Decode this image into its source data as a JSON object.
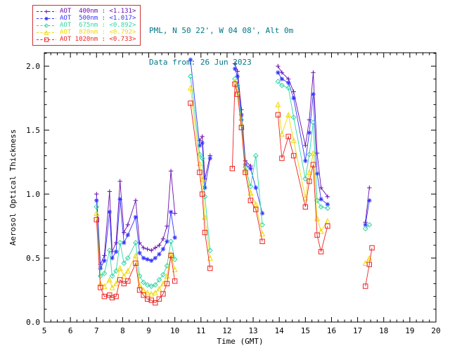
{
  "header": {
    "station_line": "PML, N 50 22', W 04 08', Alt 0m",
    "date_line": "Data from: 26 Jun 2023",
    "text_color": "#007788"
  },
  "legend": {
    "border_color": "#cc3333"
  },
  "chart_data": {
    "type": "line",
    "title": "",
    "xlabel": "Time (GMT)",
    "ylabel": "Aerosol Optical Thickness",
    "xlim": [
      5,
      20
    ],
    "ylim": [
      0,
      2.105
    ],
    "xticks": [
      5,
      6,
      7,
      8,
      9,
      10,
      11,
      12,
      13,
      14,
      15,
      16,
      17,
      18,
      19,
      20
    ],
    "yticks": [
      0,
      0.5,
      1,
      1.5,
      2
    ],
    "grid": false,
    "legend_position": "top-left",
    "line_break_gap_hours": 0.5,
    "x": [
      7.0,
      7.15,
      7.3,
      7.5,
      7.6,
      7.75,
      7.9,
      8.05,
      8.2,
      8.5,
      8.65,
      8.8,
      8.95,
      9.1,
      9.25,
      9.4,
      9.55,
      9.7,
      9.85,
      10.0,
      10.6,
      10.95,
      11.05,
      11.15,
      11.35,
      12.2,
      12.3,
      12.4,
      12.55,
      12.7,
      12.9,
      13.1,
      13.35,
      13.95,
      14.1,
      14.35,
      14.55,
      15.0,
      15.15,
      15.3,
      15.45,
      15.6,
      15.85,
      17.3,
      17.45,
      17.55
    ],
    "series": [
      {
        "id": "aot400",
        "name": "AOT 400nm",
        "wavelength_nm": 400,
        "mean_aot": 1.131,
        "legend_text": "AOT  400nm : <1.131>",
        "color": "#6a0dad",
        "marker": "plus",
        "values": [
          1.0,
          0.45,
          0.52,
          1.02,
          0.55,
          0.62,
          1.1,
          0.7,
          0.76,
          0.95,
          0.62,
          0.58,
          0.57,
          0.56,
          0.58,
          0.6,
          0.65,
          0.75,
          1.18,
          0.85,
          null,
          1.42,
          1.45,
          1.12,
          1.3,
          null,
          2.02,
          1.96,
          1.66,
          1.26,
          1.22,
          null,
          null,
          2.0,
          1.95,
          1.9,
          1.8,
          1.38,
          1.58,
          1.95,
          1.32,
          1.05,
          0.98,
          0.78,
          1.05,
          null
        ]
      },
      {
        "id": "aot500",
        "name": "AOT 500nm",
        "wavelength_nm": 500,
        "mean_aot": 1.017,
        "legend_text": "AOT  500nm : <1.017>",
        "color": "#3333ff",
        "marker": "asterisk",
        "values": [
          0.95,
          0.42,
          0.48,
          0.86,
          0.5,
          0.55,
          0.96,
          0.62,
          0.68,
          0.82,
          0.54,
          0.5,
          0.49,
          0.48,
          0.5,
          0.53,
          0.57,
          0.63,
          0.86,
          0.66,
          2.05,
          1.38,
          1.4,
          1.05,
          1.28,
          null,
          1.98,
          1.92,
          1.62,
          1.23,
          1.2,
          1.05,
          0.85,
          1.95,
          1.9,
          1.87,
          1.75,
          1.26,
          1.48,
          1.78,
          1.16,
          0.96,
          0.92,
          0.76,
          0.95,
          null
        ]
      },
      {
        "id": "aot675",
        "name": "AOT 675nm",
        "wavelength_nm": 675,
        "mean_aot": 0.892,
        "legend_text": "AOT  675nm : <0.892>",
        "color": "#2fd6a4",
        "marker": "diamond",
        "values": [
          0.9,
          0.36,
          0.38,
          0.56,
          0.36,
          0.4,
          0.62,
          0.46,
          0.5,
          0.62,
          0.36,
          0.31,
          0.29,
          0.28,
          0.29,
          0.33,
          0.37,
          0.44,
          0.63,
          0.49,
          1.92,
          1.31,
          1.28,
          0.98,
          0.56,
          null,
          1.9,
          1.85,
          1.58,
          1.21,
          1.06,
          1.3,
          0.76,
          1.88,
          1.85,
          1.83,
          1.6,
          1.12,
          1.31,
          1.56,
          0.95,
          0.9,
          0.89,
          0.73,
          0.76,
          null
        ]
      },
      {
        "id": "aot870",
        "name": "AOT 870nm",
        "wavelength_nm": 870,
        "mean_aot": 0.792,
        "legend_text": "AOT  870nm : <0.792>",
        "color": "#f2d800",
        "marker": "triangle",
        "values": [
          0.85,
          0.3,
          0.28,
          0.33,
          0.27,
          0.3,
          0.42,
          0.36,
          0.4,
          0.52,
          0.29,
          0.25,
          0.23,
          0.22,
          0.23,
          0.26,
          0.3,
          0.36,
          0.53,
          0.41,
          1.83,
          1.24,
          1.12,
          0.82,
          0.5,
          null,
          1.88,
          1.8,
          1.55,
          1.19,
          1.01,
          0.92,
          0.69,
          1.7,
          1.47,
          1.62,
          1.42,
          0.97,
          1.17,
          1.32,
          0.81,
          0.71,
          0.79,
          0.46,
          0.5,
          null
        ]
      },
      {
        "id": "aot1020",
        "name": "AOT 1020nm",
        "wavelength_nm": 1020,
        "mean_aot": 0.733,
        "legend_text": "AOT 1020nm : <0.733>",
        "color": "#ee2222",
        "marker": "square",
        "values": [
          0.8,
          0.27,
          0.2,
          0.21,
          0.19,
          0.2,
          0.33,
          0.3,
          0.32,
          0.46,
          0.25,
          0.21,
          0.18,
          0.17,
          0.15,
          0.18,
          0.22,
          0.3,
          0.52,
          0.32,
          1.71,
          1.17,
          1.0,
          0.7,
          0.42,
          1.2,
          1.86,
          1.78,
          1.52,
          1.17,
          0.95,
          0.88,
          0.63,
          1.62,
          1.28,
          1.45,
          1.3,
          0.9,
          1.1,
          1.23,
          0.68,
          0.55,
          0.75,
          0.28,
          0.45,
          0.58
        ]
      }
    ]
  }
}
